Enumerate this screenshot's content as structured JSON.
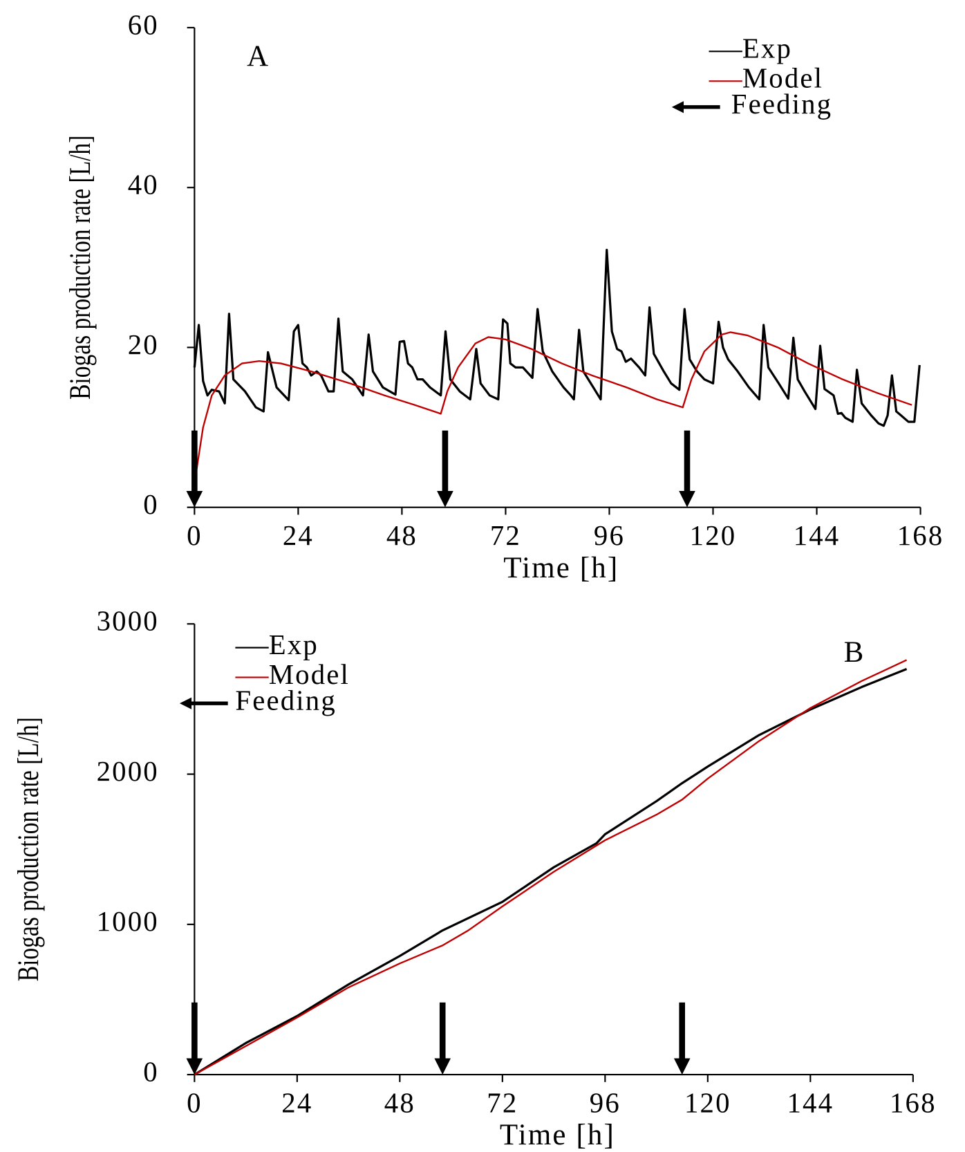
{
  "chart_data": [
    {
      "type": "line",
      "panel_label": "A",
      "xlabel": "Time [h]",
      "ylabel": "Biogas production rate [L/h]",
      "xlim": [
        0,
        168
      ],
      "xticks": [
        0,
        24,
        48,
        72,
        96,
        120,
        144,
        168
      ],
      "ylim": [
        0,
        60
      ],
      "yticks": [
        0,
        20,
        40,
        60
      ],
      "legend": "upper right",
      "feeding_label": "Feeding",
      "feeding_color": "#000000",
      "feeding": [
        0,
        58,
        114
      ],
      "series": [
        {
          "name": "Exp",
          "color": "#000000",
          "x": [
            0,
            1,
            2,
            3,
            4,
            5.7,
            7,
            8,
            9,
            11.7,
            14.2,
            16,
            17,
            19,
            21.8,
            23,
            24,
            25,
            26,
            27,
            28.3,
            29.3,
            31,
            32.2,
            33.3,
            34.3,
            36.5,
            39,
            40.3,
            41.3,
            43.6,
            46.5,
            47.5,
            48.5,
            49.4,
            50.4,
            51.6,
            52.8,
            54.5,
            57,
            58.1,
            59.2,
            61.4,
            63.8,
            65.2,
            66.2,
            68.3,
            70.3,
            71.4,
            72.4,
            73.1,
            74.3,
            76,
            78.2,
            79.4,
            80.6,
            82.8,
            85.4,
            87.1,
            87.8,
            89,
            90,
            92.3,
            94,
            95.4,
            96.6,
            97.8,
            98.8,
            99.8,
            101,
            102.9,
            104.3,
            105.3,
            106.3,
            108.6,
            110.3,
            112.2,
            113.4,
            114.6,
            116.3,
            118,
            120,
            121.3,
            122.3,
            123.5,
            125.7,
            128.3,
            130.7,
            131.7,
            132.8,
            135.2,
            137.4,
            138.6,
            139.6,
            141.2,
            143.7,
            144.8,
            145.8,
            147.9,
            148.9,
            149.7,
            150.6,
            152.3,
            153.3,
            154.4,
            156.6,
            158.3,
            159.5,
            160.4,
            161.4,
            162.4,
            163.5,
            165.2,
            166.6,
            167.8
          ],
          "values": [
            17.5,
            22.8,
            15.8,
            14,
            14.7,
            14.5,
            13,
            24.2,
            16,
            14.5,
            12.5,
            12,
            19.4,
            15,
            13.4,
            22,
            22.8,
            18,
            17.5,
            16.5,
            17,
            16.5,
            14.5,
            14.5,
            23.6,
            17,
            16,
            14,
            21.6,
            17,
            15,
            14.1,
            20.7,
            20.8,
            18,
            17.5,
            16,
            16,
            15,
            14,
            22,
            16,
            14.5,
            13.5,
            19.8,
            15.5,
            14,
            13.5,
            23.5,
            23,
            18,
            17.5,
            17.5,
            16.2,
            24.8,
            19.5,
            17,
            15,
            14,
            13.5,
            22.2,
            17,
            15,
            13.5,
            32.2,
            22,
            19.8,
            19.5,
            18.2,
            18.6,
            17.5,
            16.5,
            25,
            19.2,
            17,
            15.5,
            14.7,
            24.8,
            18.5,
            17,
            16,
            15.5,
            23.2,
            20,
            18.5,
            17,
            15,
            13.5,
            22.8,
            17.5,
            15.5,
            13.6,
            21.2,
            16,
            14.5,
            12.3,
            20.2,
            14.8,
            14,
            11.7,
            11.8,
            11.2,
            10.7,
            17.2,
            13,
            11.5,
            10.5,
            10.2,
            11.5,
            16.5,
            12,
            11.5,
            10.7,
            10.7,
            17.8
          ]
        },
        {
          "name": "Model",
          "color": "#c00000",
          "x": [
            0,
            2,
            4,
            7,
            11,
            15,
            20,
            27,
            36,
            44,
            51,
            57,
            58.5,
            61,
            65,
            68,
            72,
            78,
            85,
            92,
            100,
            107,
            113,
            115,
            118,
            122,
            124,
            128,
            135,
            142,
            150,
            158,
            166
          ],
          "values": [
            3,
            10,
            14,
            16.5,
            18,
            18.3,
            18,
            17,
            15.5,
            14,
            12.8,
            11.7,
            14.5,
            17.5,
            20.5,
            21.3,
            21,
            19.8,
            18,
            16.5,
            15,
            13.5,
            12.5,
            16,
            19.5,
            21.6,
            21.9,
            21.5,
            20,
            18,
            16,
            14.3,
            12.8
          ]
        }
      ]
    },
    {
      "type": "line",
      "panel_label": "B",
      "xlabel": "Time [h]",
      "ylabel": "Biogas production rate [L/h]",
      "xlim": [
        0,
        168
      ],
      "xticks": [
        0,
        24,
        48,
        72,
        96,
        120,
        144,
        168
      ],
      "ylim": [
        0,
        3000
      ],
      "yticks": [
        0,
        1000,
        2000,
        3000
      ],
      "legend": "upper left",
      "feeding_label": "Feeding",
      "feeding_color": "#000000",
      "feeding": [
        0,
        58,
        114
      ],
      "series": [
        {
          "name": "Exp",
          "color": "#000000",
          "x": [
            0,
            12,
            24,
            36,
            48,
            58,
            72,
            84,
            94,
            96,
            108,
            114,
            120,
            132,
            144,
            156,
            166.5
          ],
          "values": [
            0,
            210,
            390,
            600,
            790,
            960,
            1150,
            1380,
            1540,
            1600,
            1820,
            1940,
            2050,
            2260,
            2430,
            2580,
            2700
          ]
        },
        {
          "name": "Model",
          "color": "#c00000",
          "x": [
            0,
            12,
            24,
            36,
            48,
            58,
            64,
            72,
            84,
            96,
            108,
            114,
            120,
            132,
            144,
            156,
            166.5
          ],
          "values": [
            0,
            190,
            380,
            580,
            740,
            860,
            960,
            1120,
            1350,
            1560,
            1730,
            1830,
            1970,
            2220,
            2440,
            2620,
            2760
          ]
        }
      ]
    }
  ]
}
